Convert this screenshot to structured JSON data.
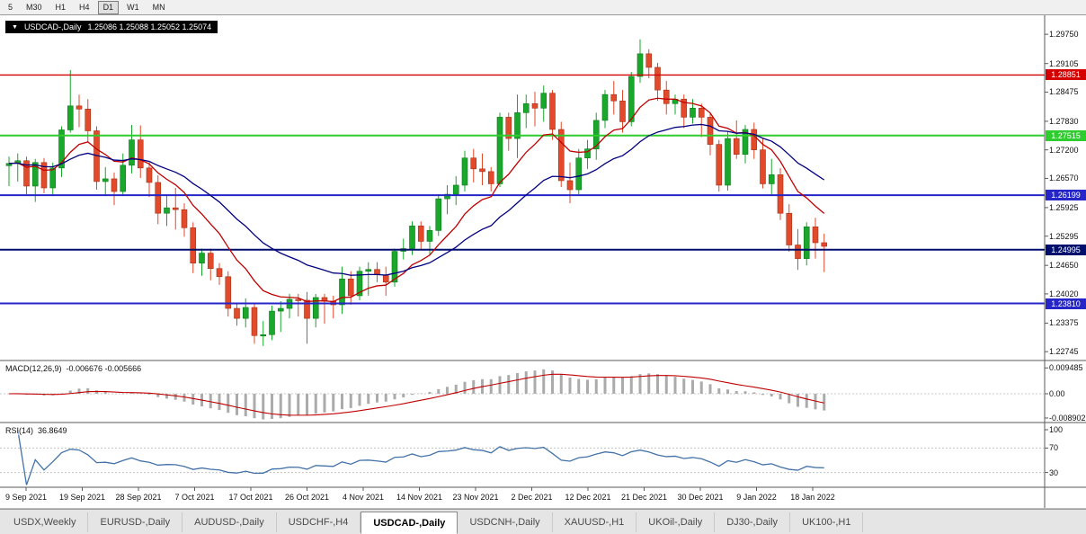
{
  "toolbar": {
    "timeframes": [
      {
        "label": "5",
        "active": false
      },
      {
        "label": "M30",
        "active": false
      },
      {
        "label": "H1",
        "active": false
      },
      {
        "label": "H4",
        "active": false
      },
      {
        "label": "D1",
        "active": true
      },
      {
        "label": "W1",
        "active": false
      },
      {
        "label": "MN",
        "active": false
      }
    ]
  },
  "price_panel": {
    "title": "USDCAD-,Daily",
    "ohlc": "1.25086 1.25088 1.25052 1.25074",
    "axis_ticks": [
      "1.29750",
      "1.29105",
      "1.28475",
      "1.27830",
      "1.27200",
      "1.26570",
      "1.25925",
      "1.25295",
      "1.24650",
      "1.24020",
      "1.23375",
      "1.22745"
    ],
    "hlines": [
      {
        "label": "1.28851",
        "price": 1.28851,
        "color": "#d40000",
        "width": 1.4
      },
      {
        "label": "1.27515",
        "price": 1.27515,
        "color": "#2ecc2e",
        "width": 2
      },
      {
        "label": "1.26199",
        "price": 1.26199,
        "color": "#2626c8",
        "width": 2
      },
      {
        "label": "1.24995",
        "price": 1.24995,
        "color": "#000f6e",
        "width": 2
      },
      {
        "label": "1.23810",
        "price": 1.2381,
        "color": "#2626c8",
        "width": 2
      }
    ]
  },
  "macd_panel": {
    "name": "MACD(12,26,9)",
    "values": "-0.006676 -0.005666",
    "axis_ticks": [
      {
        "v": 0.009485,
        "t": "0.009485"
      },
      {
        "v": 0,
        "t": "0.00"
      },
      {
        "v": -0.008902,
        "t": "-0.008902"
      }
    ]
  },
  "rsi_panel": {
    "name": "RSI(14)",
    "value": "36.8649",
    "axis_ticks": [
      {
        "v": 100,
        "t": "100"
      },
      {
        "v": 70,
        "t": "70"
      },
      {
        "v": 30,
        "t": "30"
      }
    ]
  },
  "tabs": [
    {
      "label": "USDX,Weekly",
      "active": false
    },
    {
      "label": "EURUSD-,Daily",
      "active": false
    },
    {
      "label": "AUDUSD-,Daily",
      "active": false
    },
    {
      "label": "USDCHF-,H4",
      "active": false
    },
    {
      "label": "USDCAD-,Daily",
      "active": true
    },
    {
      "label": "USDCNH-,Daily",
      "active": false
    },
    {
      "label": "XAUUSD-,H1",
      "active": false
    },
    {
      "label": "UKOil-,Daily",
      "active": false
    },
    {
      "label": "DJ30-,Daily",
      "active": false
    },
    {
      "label": "UK100-,H1",
      "active": false
    }
  ],
  "chart_data": {
    "type": "candlestick",
    "symbol": "USDCAD-",
    "timeframe": "Daily",
    "title": "USDCAD-,Daily",
    "current_quote": {
      "open": 1.25086,
      "high": 1.25088,
      "low": 1.25052,
      "close": 1.25074
    },
    "y_axis_range": [
      1.2255,
      1.3017
    ],
    "x_labels": [
      "9 Sep 2021",
      "19 Sep 2021",
      "28 Sep 2021",
      "7 Oct 2021",
      "17 Oct 2021",
      "26 Oct 2021",
      "4 Nov 2021",
      "14 Nov 2021",
      "23 Nov 2021",
      "2 Dec 2021",
      "12 Dec 2021",
      "21 Dec 2021",
      "30 Dec 2021",
      "9 Jan 2022",
      "18 Jan 2022"
    ],
    "horizontal_levels": [
      1.28851,
      1.27515,
      1.26199,
      1.24995,
      1.2381
    ],
    "moving_averages": [
      {
        "period": 10,
        "method": "ema",
        "color": "#c00000"
      },
      {
        "period": 24,
        "method": "ema",
        "color": "#000080"
      }
    ],
    "indicators": [
      {
        "name": "MACD",
        "params": [
          12,
          26,
          9
        ],
        "main": -0.006676,
        "signal": -0.005666,
        "scale": [
          -0.008902,
          0.009485
        ]
      },
      {
        "name": "RSI",
        "params": [
          14
        ],
        "value": 36.8649,
        "levels": [
          30,
          70
        ],
        "scale": [
          0,
          100
        ]
      }
    ],
    "candles": [
      [
        1.2685,
        1.2705,
        1.264,
        1.269
      ],
      [
        1.269,
        1.2712,
        1.265,
        1.2696
      ],
      [
        1.2696,
        1.2705,
        1.2622,
        1.264
      ],
      [
        1.264,
        1.27,
        1.2605,
        1.2692
      ],
      [
        1.2692,
        1.2702,
        1.2624,
        1.2636
      ],
      [
        1.2636,
        1.2692,
        1.2618,
        1.268
      ],
      [
        1.268,
        1.2772,
        1.266,
        1.2764
      ],
      [
        1.2764,
        1.2896,
        1.2758,
        1.2817
      ],
      [
        1.2817,
        1.2842,
        1.277,
        1.281
      ],
      [
        1.281,
        1.2832,
        1.2738,
        1.2762
      ],
      [
        1.2762,
        1.2772,
        1.2632,
        1.265
      ],
      [
        1.265,
        1.2682,
        1.2618,
        1.2656
      ],
      [
        1.2656,
        1.267,
        1.2598,
        1.2628
      ],
      [
        1.2628,
        1.2712,
        1.2618,
        1.2686
      ],
      [
        1.2686,
        1.2775,
        1.2668,
        1.2742
      ],
      [
        1.2742,
        1.2774,
        1.2658,
        1.268
      ],
      [
        1.268,
        1.2692,
        1.2616,
        1.2648
      ],
      [
        1.2648,
        1.2664,
        1.2556,
        1.258
      ],
      [
        1.258,
        1.2622,
        1.2552,
        1.2592
      ],
      [
        1.2592,
        1.2636,
        1.2544,
        1.2588
      ],
      [
        1.2588,
        1.2602,
        1.2528,
        1.2548
      ],
      [
        1.2548,
        1.256,
        1.2448,
        1.247
      ],
      [
        1.247,
        1.2502,
        1.2442,
        1.2492
      ],
      [
        1.2492,
        1.2502,
        1.2432,
        1.2458
      ],
      [
        1.2458,
        1.247,
        1.2422,
        1.244
      ],
      [
        1.244,
        1.2452,
        1.2352,
        1.237
      ],
      [
        1.237,
        1.2382,
        1.2332,
        1.2348
      ],
      [
        1.2348,
        1.2392,
        1.2328,
        1.2372
      ],
      [
        1.2372,
        1.238,
        1.2292,
        1.231
      ],
      [
        1.231,
        1.2342,
        1.2287,
        1.2312
      ],
      [
        1.2312,
        1.2376,
        1.23,
        1.2364
      ],
      [
        1.2364,
        1.2386,
        1.2318,
        1.237
      ],
      [
        1.237,
        1.2402,
        1.2348,
        1.239
      ],
      [
        1.239,
        1.2402,
        1.2352,
        1.2388
      ],
      [
        1.2388,
        1.2406,
        1.2292,
        1.2348
      ],
      [
        1.2348,
        1.2402,
        1.2328,
        1.2394
      ],
      [
        1.2394,
        1.2402,
        1.2336,
        1.2386
      ],
      [
        1.2386,
        1.2398,
        1.2348,
        1.2378
      ],
      [
        1.2378,
        1.2462,
        1.2358,
        1.2435
      ],
      [
        1.2435,
        1.2452,
        1.2378,
        1.2398
      ],
      [
        1.2398,
        1.2462,
        1.2388,
        1.2452
      ],
      [
        1.2452,
        1.2472,
        1.2398,
        1.2456
      ],
      [
        1.2456,
        1.2472,
        1.2428,
        1.2444
      ],
      [
        1.2444,
        1.2462,
        1.2398,
        1.2428
      ],
      [
        1.2428,
        1.2502,
        1.2418,
        1.2496
      ],
      [
        1.2496,
        1.2524,
        1.2478,
        1.2502
      ],
      [
        1.2502,
        1.2562,
        1.2488,
        1.2552
      ],
      [
        1.2552,
        1.2562,
        1.2498,
        1.2518
      ],
      [
        1.2518,
        1.2552,
        1.2488,
        1.2542
      ],
      [
        1.2542,
        1.2622,
        1.253,
        1.2612
      ],
      [
        1.2612,
        1.2642,
        1.2578,
        1.2622
      ],
      [
        1.2622,
        1.2662,
        1.2598,
        1.2642
      ],
      [
        1.2642,
        1.2718,
        1.2628,
        1.2702
      ],
      [
        1.2702,
        1.2722,
        1.2648,
        1.2678
      ],
      [
        1.2678,
        1.2712,
        1.2642,
        1.2672
      ],
      [
        1.2672,
        1.2682,
        1.2628,
        1.2645
      ],
      [
        1.2645,
        1.2802,
        1.2638,
        1.2792
      ],
      [
        1.2792,
        1.2802,
        1.2718,
        1.2745
      ],
      [
        1.2745,
        1.2842,
        1.2702,
        1.2802
      ],
      [
        1.2802,
        1.2842,
        1.2768,
        1.2822
      ],
      [
        1.2822,
        1.2848,
        1.2772,
        1.2812
      ],
      [
        1.2812,
        1.2862,
        1.2782,
        1.2845
      ],
      [
        1.2845,
        1.2852,
        1.2742,
        1.2765
      ],
      [
        1.2765,
        1.2782,
        1.2638,
        1.2652
      ],
      [
        1.2652,
        1.2692,
        1.2602,
        1.2632
      ],
      [
        1.2632,
        1.2722,
        1.2622,
        1.2702
      ],
      [
        1.2702,
        1.2742,
        1.2678,
        1.2722
      ],
      [
        1.2722,
        1.2802,
        1.2698,
        1.2785
      ],
      [
        1.2785,
        1.2852,
        1.2768,
        1.2842
      ],
      [
        1.2842,
        1.2872,
        1.2798,
        1.2828
      ],
      [
        1.2828,
        1.2852,
        1.2758,
        1.2782
      ],
      [
        1.2782,
        1.2892,
        1.2772,
        1.2882
      ],
      [
        1.2882,
        1.2964,
        1.2868,
        1.2932
      ],
      [
        1.2932,
        1.2942,
        1.2878,
        1.2902
      ],
      [
        1.2902,
        1.2912,
        1.2828,
        1.2852
      ],
      [
        1.2852,
        1.2872,
        1.2798,
        1.2822
      ],
      [
        1.2822,
        1.2842,
        1.2798,
        1.2832
      ],
      [
        1.2832,
        1.2842,
        1.2768,
        1.2792
      ],
      [
        1.2792,
        1.2832,
        1.2778,
        1.2812
      ],
      [
        1.2812,
        1.2822,
        1.2748,
        1.2792
      ],
      [
        1.2792,
        1.2802,
        1.2708,
        1.2732
      ],
      [
        1.2732,
        1.2742,
        1.2628,
        1.2642
      ],
      [
        1.2642,
        1.276,
        1.263,
        1.2745
      ],
      [
        1.2745,
        1.2785,
        1.27,
        1.271
      ],
      [
        1.271,
        1.2775,
        1.269,
        1.2765
      ],
      [
        1.2765,
        1.278,
        1.27,
        1.272
      ],
      [
        1.272,
        1.2745,
        1.2635,
        1.2645
      ],
      [
        1.2645,
        1.27,
        1.262,
        1.2665
      ],
      [
        1.2665,
        1.268,
        1.2565,
        1.258
      ],
      [
        1.258,
        1.26,
        1.2495,
        1.251
      ],
      [
        1.251,
        1.2545,
        1.2455,
        1.248
      ],
      [
        1.248,
        1.256,
        1.2465,
        1.255
      ],
      [
        1.255,
        1.257,
        1.248,
        1.2515
      ],
      [
        1.2515,
        1.2535,
        1.245,
        1.2507
      ]
    ],
    "colors": {
      "up": "#19a72c",
      "down": "#e3492b",
      "macd_hist": "#ababab",
      "macd_signal": "#c00000",
      "rsi_line": "#4472a8"
    }
  }
}
